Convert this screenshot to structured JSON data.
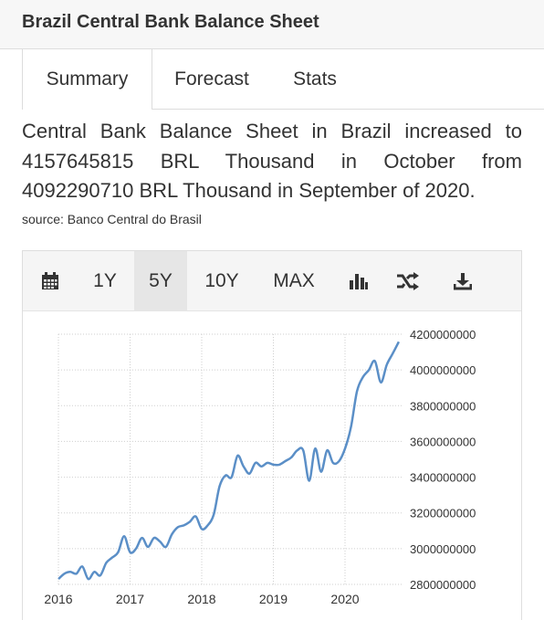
{
  "header": {
    "title": "Brazil Central Bank Balance Sheet"
  },
  "tabs": [
    {
      "label": "Summary"
    },
    {
      "label": "Forecast"
    },
    {
      "label": "Stats"
    }
  ],
  "description": "Central Bank Balance Sheet in Brazil increased to 4157645815 BRL Thousand in October from 4092290710 BRL Thousand in September of 2020.",
  "source": "source: Banco Central do Brasil",
  "toolbar": {
    "ranges": [
      "1Y",
      "5Y",
      "10Y",
      "MAX"
    ],
    "selected": "5Y",
    "icons": [
      "calendar-icon",
      "bar-chart-icon",
      "shuffle-icon",
      "download-icon"
    ]
  },
  "colors": {
    "line": "#5b8fc7",
    "grid": "#cfcfcf",
    "active_bg": "#e6e6e6"
  },
  "chart_data": {
    "type": "line",
    "title": "",
    "xlabel": "",
    "ylabel": "",
    "x_ticks": [
      "2016",
      "2017",
      "2018",
      "2019",
      "2020"
    ],
    "y_ticks": [
      "2800000000",
      "3000000000",
      "3200000000",
      "3400000000",
      "3600000000",
      "3800000000",
      "4000000000",
      "4200000000"
    ],
    "ylim": [
      2800000000,
      4200000000
    ],
    "grid": true,
    "series": [
      {
        "name": "",
        "points": [
          [
            "2016-01",
            2830000000
          ],
          [
            "2016-02",
            2860000000
          ],
          [
            "2016-03",
            2870000000
          ],
          [
            "2016-04",
            2860000000
          ],
          [
            "2016-05",
            2900000000
          ],
          [
            "2016-06",
            2830000000
          ],
          [
            "2016-07",
            2870000000
          ],
          [
            "2016-08",
            2850000000
          ],
          [
            "2016-09",
            2920000000
          ],
          [
            "2016-10",
            2950000000
          ],
          [
            "2016-11",
            2980000000
          ],
          [
            "2016-12",
            3070000000
          ],
          [
            "2017-01",
            2980000000
          ],
          [
            "2017-02",
            3000000000
          ],
          [
            "2017-03",
            3060000000
          ],
          [
            "2017-04",
            3010000000
          ],
          [
            "2017-05",
            3060000000
          ],
          [
            "2017-06",
            3040000000
          ],
          [
            "2017-07",
            3010000000
          ],
          [
            "2017-08",
            3080000000
          ],
          [
            "2017-09",
            3120000000
          ],
          [
            "2017-10",
            3130000000
          ],
          [
            "2017-11",
            3150000000
          ],
          [
            "2017-12",
            3180000000
          ],
          [
            "2018-01",
            3110000000
          ],
          [
            "2018-02",
            3130000000
          ],
          [
            "2018-03",
            3190000000
          ],
          [
            "2018-04",
            3350000000
          ],
          [
            "2018-05",
            3410000000
          ],
          [
            "2018-06",
            3400000000
          ],
          [
            "2018-07",
            3520000000
          ],
          [
            "2018-08",
            3460000000
          ],
          [
            "2018-09",
            3420000000
          ],
          [
            "2018-10",
            3480000000
          ],
          [
            "2018-11",
            3460000000
          ],
          [
            "2018-12",
            3480000000
          ],
          [
            "2019-01",
            3470000000
          ],
          [
            "2019-02",
            3470000000
          ],
          [
            "2019-03",
            3490000000
          ],
          [
            "2019-04",
            3510000000
          ],
          [
            "2019-05",
            3550000000
          ],
          [
            "2019-06",
            3550000000
          ],
          [
            "2019-07",
            3380000000
          ],
          [
            "2019-08",
            3560000000
          ],
          [
            "2019-09",
            3430000000
          ],
          [
            "2019-10",
            3550000000
          ],
          [
            "2019-11",
            3480000000
          ],
          [
            "2019-12",
            3490000000
          ],
          [
            "2020-01",
            3560000000
          ],
          [
            "2020-02",
            3680000000
          ],
          [
            "2020-03",
            3880000000
          ],
          [
            "2020-04",
            3960000000
          ],
          [
            "2020-05",
            4000000000
          ],
          [
            "2020-06",
            4050000000
          ],
          [
            "2020-07",
            3930000000
          ],
          [
            "2020-08",
            4030000000
          ],
          [
            "2020-09",
            4092290710
          ],
          [
            "2020-10",
            4157645815
          ]
        ]
      }
    ]
  }
}
